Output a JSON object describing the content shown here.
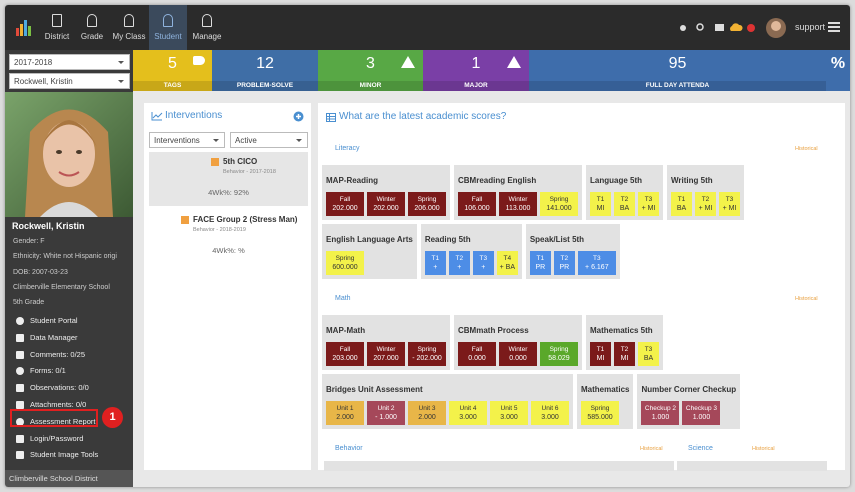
{
  "nav": {
    "items": [
      "District",
      "Grade",
      "My Class",
      "Student",
      "Manage"
    ],
    "active": 3,
    "user": "support"
  },
  "sidebar": {
    "year": "2017-2018",
    "student_select": "Rockwell, Kristin",
    "name": "Rockwell, Kristin",
    "details": [
      "Gender: F",
      "Ethnicity: White not Hispanic origi",
      "DOB: 2007-03-23",
      "Climberville Elementary School",
      "5th Grade"
    ],
    "menu": [
      "Student Portal",
      "Data Manager",
      "Comments: 0/25",
      "Forms: 0/1",
      "Observations: 0/0",
      "Attachments: 0/0",
      "Assessment Report",
      "Login/Password",
      "Student Image Tools"
    ],
    "highlighted": 6,
    "callout": "1",
    "footer": "Climberville School District"
  },
  "stats": [
    {
      "value": 5,
      "label": "TAGS",
      "color": "#e4bf1c"
    },
    {
      "value": 12,
      "label": "PROBLEM-SOLVE",
      "color": "#3f6ea6"
    },
    {
      "value": 3,
      "label": "MINOR",
      "color": "#58a845"
    },
    {
      "value": 1,
      "label": "MAJOR",
      "color": "#7a3fa6"
    },
    {
      "value": 95,
      "label": "FULL DAY ATTENDA",
      "color": "#3e6dab"
    }
  ],
  "percent_icon": "%",
  "interventions": {
    "title": "Interventions",
    "filters": [
      "Interventions",
      "Active"
    ],
    "items": [
      {
        "name": "5th CICO",
        "meta": "Behavior - 2017-2018",
        "score": "4Wk%: 92%"
      },
      {
        "name": "FACE Group 2 (Stress Man)",
        "meta": "Behavior - 2018-2019",
        "score": "4Wk%: %"
      }
    ]
  },
  "scores": {
    "title": "What are the latest academic scores?",
    "sections": [
      {
        "name": "Literacy",
        "link": "Historical",
        "rows": [
          [
            {
              "title": "MAP-Reading",
              "cells": [
                {
                  "label": "Fall",
                  "value": "202.000",
                  "color": "#7b1a1a"
                },
                {
                  "label": "Winter",
                  "value": "202.000",
                  "color": "#7b1a1a"
                },
                {
                  "label": "Spring",
                  "value": "206.000",
                  "color": "#7b1a1a"
                }
              ]
            },
            {
              "title": "CBMreading English",
              "cells": [
                {
                  "label": "Fall",
                  "value": "106.000",
                  "color": "#7b1a1a"
                },
                {
                  "label": "Winter",
                  "value": "113.000",
                  "color": "#7b1a1a"
                },
                {
                  "label": "Spring",
                  "value": "141.000",
                  "color": "#f3f24a"
                }
              ]
            },
            {
              "title": "Language 5th",
              "cells": [
                {
                  "label": "T1",
                  "value": "MI",
                  "color": "#f3f24a"
                },
                {
                  "label": "T2",
                  "value": "BA",
                  "color": "#f3f24a"
                },
                {
                  "label": "T3",
                  "value": "+ MI",
                  "color": "#f3f24a"
                }
              ]
            },
            {
              "title": "Writing 5th",
              "cells": [
                {
                  "label": "T1",
                  "value": "BA",
                  "color": "#f3f24a"
                },
                {
                  "label": "T2",
                  "value": "+ MI",
                  "color": "#f3f24a"
                },
                {
                  "label": "T3",
                  "value": "+ MI",
                  "color": "#f3f24a"
                }
              ]
            }
          ],
          [
            {
              "title": "English Language Arts",
              "cells": [
                {
                  "label": "Spring",
                  "value": "600.000",
                  "color": "#f3f24a"
                }
              ]
            },
            {
              "title": "Reading 5th",
              "cells": [
                {
                  "label": "T1",
                  "value": "+",
                  "color": "#4d8de6"
                },
                {
                  "label": "T2",
                  "value": "+",
                  "color": "#4d8de6"
                },
                {
                  "label": "T3",
                  "value": "+",
                  "color": "#4d8de6"
                },
                {
                  "label": "T4",
                  "value": "+ BA",
                  "color": "#f3f24a"
                }
              ]
            },
            {
              "title": "Speak/List 5th",
              "cells": [
                {
                  "label": "T1",
                  "value": "PR",
                  "color": "#4d8de6"
                },
                {
                  "label": "T2",
                  "value": "PR",
                  "color": "#4d8de6"
                },
                {
                  "label": "T3",
                  "value": "+ 6.167",
                  "color": "#4d8de6"
                }
              ]
            }
          ]
        ]
      },
      {
        "name": "Math",
        "link": "Historical",
        "rows": [
          [
            {
              "title": "MAP-Math",
              "cells": [
                {
                  "label": "Fall",
                  "value": "203.000",
                  "color": "#7b1a1a"
                },
                {
                  "label": "Winter",
                  "value": "207.000",
                  "color": "#7b1a1a"
                },
                {
                  "label": "Spring",
                  "value": "- 202.000",
                  "color": "#7b1a1a"
                }
              ]
            },
            {
              "title": "CBMmath Process",
              "cells": [
                {
                  "label": "Fall",
                  "value": "0.000",
                  "color": "#7b1a1a"
                },
                {
                  "label": "Winter",
                  "value": "0.000",
                  "color": "#7b1a1a"
                },
                {
                  "label": "Spring",
                  "value": "58.029",
                  "color": "#5aa82a"
                }
              ]
            },
            {
              "title": "Mathematics 5th",
              "cells": [
                {
                  "label": "T1",
                  "value": "MI",
                  "color": "#7b1a1a"
                },
                {
                  "label": "T2",
                  "value": "MI",
                  "color": "#7b1a1a"
                },
                {
                  "label": "T3",
                  "value": "BA",
                  "color": "#f3f24a"
                }
              ]
            }
          ],
          [
            {
              "title": "Bridges Unit Assessment",
              "cells": [
                {
                  "label": "Unit 1",
                  "value": "2.000",
                  "color": "#e8b648"
                },
                {
                  "label": "Unit 2",
                  "value": "- 1.000",
                  "color": "#a5485a"
                },
                {
                  "label": "Unit 3",
                  "value": "2.000",
                  "color": "#e8b648"
                },
                {
                  "label": "Unit 4",
                  "value": "3.000",
                  "color": "#f3f24a"
                },
                {
                  "label": "Unit 5",
                  "value": "3.000",
                  "color": "#f3f24a"
                },
                {
                  "label": "Unit 6",
                  "value": "3.000",
                  "color": "#f3f24a"
                }
              ]
            },
            {
              "title": "Mathematics",
              "cells": [
                {
                  "label": "Spring",
                  "value": "585.000",
                  "color": "#f3f24a"
                }
              ]
            },
            {
              "title": "Number Corner Checkup",
              "cells": [
                {
                  "label": "Checkup 2",
                  "value": "1.000",
                  "color": "#a5485a"
                },
                {
                  "label": "Checkup 3",
                  "value": "1.000",
                  "color": "#a5485a"
                }
              ]
            }
          ]
        ]
      },
      {
        "name": "Behavior",
        "link": "Historical",
        "rows": []
      },
      {
        "name": "Science",
        "link": "Historical",
        "rows": []
      }
    ]
  }
}
